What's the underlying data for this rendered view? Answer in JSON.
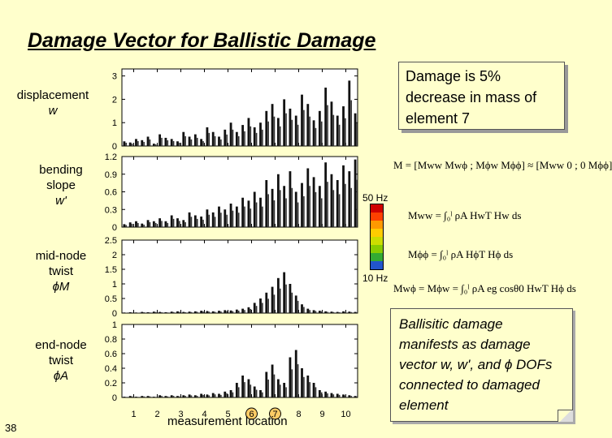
{
  "title": "Damage Vector for Ballistic Damage",
  "row_labels": [
    {
      "lines": [
        "displacement"
      ],
      "symbol": "w"
    },
    {
      "lines": [
        "bending",
        "slope"
      ],
      "symbol": "w'"
    },
    {
      "lines": [
        "mid-node",
        "twist"
      ],
      "symbol": "ϕM"
    },
    {
      "lines": [
        "end-node",
        "twist"
      ],
      "symbol": "ϕA"
    }
  ],
  "callout": "Damage is 5% decrease in mass of element 7",
  "note": "Ballisitic damage manifests as damage vector w, w', and ϕ DOFs connected to damaged element",
  "hz_top": "50 Hz",
  "hz_bottom": "10 Hz",
  "slide_number": "38",
  "xlabel": "measurement location",
  "colorbar_colors": [
    "#d00000",
    "#ff4000",
    "#ff9900",
    "#ffcc00",
    "#ccdd00",
    "#88cc00",
    "#33aa33",
    "#2255cc"
  ],
  "equations": {
    "matrix": "M = [Mww Mwϕ ; Mϕw Mϕϕ] ≈ [Mww 0 ; 0 Mϕϕ]",
    "mww": "Mww = ∫₀ˡ ρA HwT Hw ds",
    "mpp": "Mϕϕ = ∫₀ˡ ρA HϕT Hϕ ds",
    "mwp": "Mwϕ = Mϕw = ∫₀ˡ ρA eg cosθ0 HwT Hϕ ds"
  },
  "chart_data": {
    "type": "bar",
    "x_ticks": [
      "1",
      "2",
      "3",
      "4",
      "5",
      "6",
      "7",
      "8",
      "9",
      "10"
    ],
    "highlighted_x": [
      "6",
      "7"
    ],
    "xlim": [
      0.5,
      10.5
    ],
    "panels": [
      {
        "yticks": [
          "0",
          "1",
          "2",
          "3"
        ],
        "ylim": [
          0,
          3.3
        ],
        "values": [
          0.2,
          0.15,
          0.3,
          0.25,
          0.4,
          0.1,
          0.5,
          0.35,
          0.3,
          0.2,
          0.6,
          0.4,
          0.5,
          0.3,
          0.8,
          0.6,
          0.4,
          0.7,
          1.0,
          0.6,
          0.9,
          1.2,
          0.8,
          1.0,
          1.5,
          1.8,
          1.2,
          2.0,
          1.6,
          1.3,
          2.2,
          1.8,
          1.1,
          1.5,
          2.5,
          1.9,
          1.3,
          1.7,
          2.8,
          1.4
        ]
      },
      {
        "yticks": [
          "0",
          "0.3",
          "0.6",
          "0.9",
          "1.2"
        ],
        "ylim": [
          0,
          1.2
        ],
        "values": [
          0.05,
          0.08,
          0.1,
          0.06,
          0.12,
          0.1,
          0.15,
          0.1,
          0.2,
          0.15,
          0.12,
          0.25,
          0.2,
          0.18,
          0.3,
          0.25,
          0.35,
          0.3,
          0.4,
          0.35,
          0.5,
          0.45,
          0.6,
          0.5,
          0.8,
          0.65,
          0.9,
          0.7,
          0.95,
          0.6,
          0.75,
          1.0,
          0.85,
          0.7,
          1.1,
          0.9,
          0.8,
          1.05,
          0.95,
          1.15
        ]
      },
      {
        "yticks": [
          "0",
          "0.5",
          "1",
          "1.5",
          "2",
          "2.5"
        ],
        "ylim": [
          0,
          2.5
        ],
        "values": [
          0.02,
          0.03,
          0.02,
          0.04,
          0.03,
          0.05,
          0.04,
          0.03,
          0.05,
          0.06,
          0.04,
          0.05,
          0.06,
          0.08,
          0.07,
          0.06,
          0.08,
          0.1,
          0.09,
          0.12,
          0.15,
          0.2,
          0.35,
          0.5,
          0.7,
          0.9,
          1.2,
          1.4,
          1.0,
          0.6,
          0.3,
          0.15,
          0.1,
          0.08,
          0.06,
          0.05,
          0.04,
          0.06,
          0.05,
          0.04
        ]
      },
      {
        "yticks": [
          "0",
          "0.2",
          "0.4",
          "0.6",
          "0.8",
          "1"
        ],
        "ylim": [
          0,
          1.0
        ],
        "values": [
          0.01,
          0.02,
          0.01,
          0.02,
          0.02,
          0.01,
          0.03,
          0.02,
          0.03,
          0.02,
          0.03,
          0.04,
          0.03,
          0.05,
          0.04,
          0.06,
          0.05,
          0.08,
          0.1,
          0.2,
          0.3,
          0.25,
          0.15,
          0.1,
          0.35,
          0.45,
          0.25,
          0.2,
          0.55,
          0.65,
          0.4,
          0.3,
          0.2,
          0.1,
          0.08,
          0.06,
          0.05,
          0.04,
          0.03,
          0.02
        ]
      }
    ]
  }
}
